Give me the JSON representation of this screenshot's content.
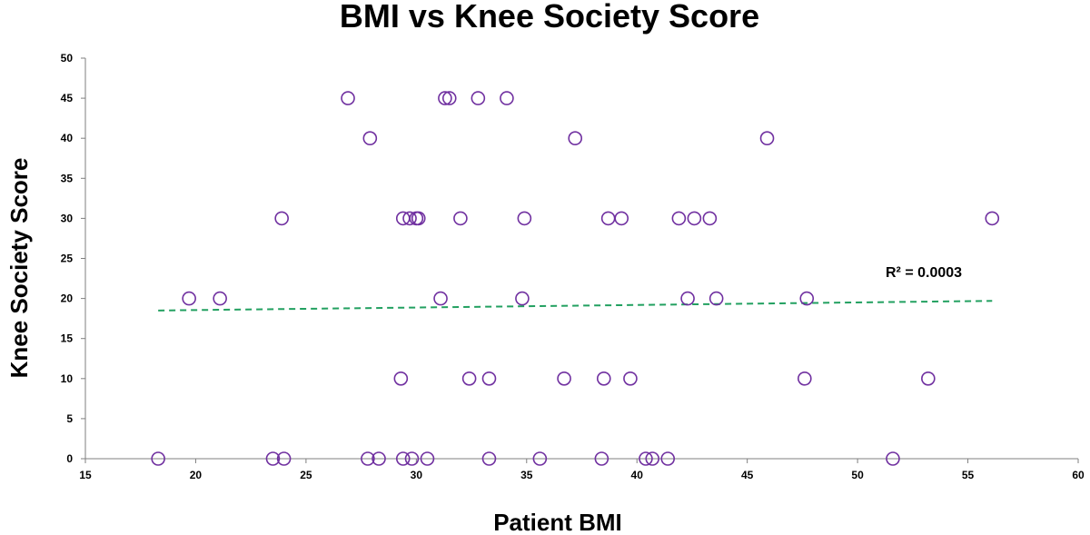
{
  "chart_data": {
    "type": "scatter",
    "title": "BMI vs Knee Society Score",
    "xlabel": "Patient BMI",
    "ylabel": "Knee Society Score",
    "xlim": [
      15,
      60
    ],
    "ylim": [
      0,
      50
    ],
    "xticks": [
      15,
      20,
      25,
      30,
      35,
      40,
      45,
      50,
      55,
      60
    ],
    "yticks": [
      0,
      5,
      10,
      15,
      20,
      25,
      30,
      35,
      40,
      45,
      50
    ],
    "grid": false,
    "legend": "none",
    "marker_color": "#7030a0",
    "trendline_color": "#22a060",
    "points": [
      {
        "x": 26.9,
        "y": 45
      },
      {
        "x": 31.3,
        "y": 45
      },
      {
        "x": 31.5,
        "y": 45
      },
      {
        "x": 32.8,
        "y": 45
      },
      {
        "x": 34.1,
        "y": 45
      },
      {
        "x": 27.9,
        "y": 40
      },
      {
        "x": 37.2,
        "y": 40
      },
      {
        "x": 45.9,
        "y": 40
      },
      {
        "x": 23.9,
        "y": 30
      },
      {
        "x": 29.4,
        "y": 30
      },
      {
        "x": 29.7,
        "y": 30
      },
      {
        "x": 30.0,
        "y": 30
      },
      {
        "x": 30.1,
        "y": 30
      },
      {
        "x": 32.0,
        "y": 30
      },
      {
        "x": 34.9,
        "y": 30
      },
      {
        "x": 38.7,
        "y": 30
      },
      {
        "x": 39.3,
        "y": 30
      },
      {
        "x": 41.9,
        "y": 30
      },
      {
        "x": 42.6,
        "y": 30
      },
      {
        "x": 43.3,
        "y": 30
      },
      {
        "x": 56.1,
        "y": 30
      },
      {
        "x": 19.7,
        "y": 20
      },
      {
        "x": 21.1,
        "y": 20
      },
      {
        "x": 31.1,
        "y": 20
      },
      {
        "x": 34.8,
        "y": 20
      },
      {
        "x": 42.3,
        "y": 20
      },
      {
        "x": 43.6,
        "y": 20
      },
      {
        "x": 47.7,
        "y": 20
      },
      {
        "x": 29.3,
        "y": 10
      },
      {
        "x": 32.4,
        "y": 10
      },
      {
        "x": 33.3,
        "y": 10
      },
      {
        "x": 36.7,
        "y": 10
      },
      {
        "x": 38.5,
        "y": 10
      },
      {
        "x": 39.7,
        "y": 10
      },
      {
        "x": 47.6,
        "y": 10
      },
      {
        "x": 53.2,
        "y": 10
      },
      {
        "x": 18.3,
        "y": 0
      },
      {
        "x": 23.5,
        "y": 0
      },
      {
        "x": 24.0,
        "y": 0
      },
      {
        "x": 27.8,
        "y": 0
      },
      {
        "x": 28.3,
        "y": 0
      },
      {
        "x": 29.4,
        "y": 0
      },
      {
        "x": 29.8,
        "y": 0
      },
      {
        "x": 30.5,
        "y": 0
      },
      {
        "x": 33.3,
        "y": 0
      },
      {
        "x": 35.6,
        "y": 0
      },
      {
        "x": 38.4,
        "y": 0
      },
      {
        "x": 40.4,
        "y": 0
      },
      {
        "x": 40.7,
        "y": 0
      },
      {
        "x": 41.4,
        "y": 0
      },
      {
        "x": 51.6,
        "y": 0
      }
    ],
    "trendline": {
      "x": [
        18.3,
        56.1
      ],
      "y": [
        18.5,
        19.7
      ]
    },
    "annotation": "R² = 0.0003"
  }
}
